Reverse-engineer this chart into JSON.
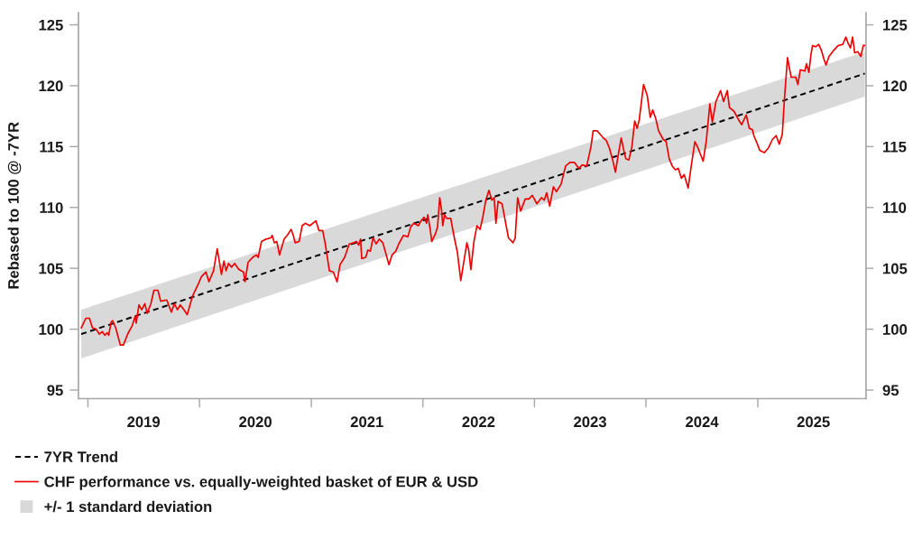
{
  "chart_data": {
    "type": "line",
    "ylabel": "Rebased to 100 @ -7YR",
    "xlim": [
      "2018-12-01",
      "2025-12-21"
    ],
    "xticks": [
      {
        "value": "2019-01-01",
        "label": null
      },
      {
        "value": "2020-01-01",
        "label": null
      },
      {
        "value": "2021-01-01",
        "label": null
      },
      {
        "value": "2022-01-01",
        "label": null
      },
      {
        "value": "2023-01-01",
        "label": null
      },
      {
        "value": "2024-01-01",
        "label": null
      },
      {
        "value": "2025-01-01",
        "label": null
      },
      {
        "value": "2019-07-02",
        "label": "2019"
      },
      {
        "value": "2020-07-02",
        "label": "2020"
      },
      {
        "value": "2021-07-02",
        "label": "2021"
      },
      {
        "value": "2022-07-02",
        "label": "2022"
      },
      {
        "value": "2023-07-02",
        "label": "2023"
      },
      {
        "value": "2024-07-02",
        "label": "2024"
      },
      {
        "value": "2025-07-02",
        "label": "2025"
      }
    ],
    "ylim": [
      94.3,
      126.0
    ],
    "yticks": [
      95,
      100,
      105,
      110,
      115,
      120,
      125
    ],
    "y2lim": [
      94.3,
      126.0
    ],
    "y2ticks": [
      95,
      100,
      105,
      110,
      115,
      120,
      125
    ],
    "legend": "bottom left",
    "series": [
      {
        "name": "7YR Trend",
        "color": "#000000",
        "line_style": "dashed",
        "x": [
          "2018-12-10",
          "2025-12-17"
        ],
        "values": [
          99.6,
          121.0
        ]
      },
      {
        "name": "CHF performance vs. equally-weighted basket of EUR & USD",
        "color": "#ee0000",
        "line_style": "solid",
        "x": [
          "2018-12-10",
          "2018-12-25",
          "2019-01-06",
          "2019-01-16",
          "2019-01-28",
          "2019-02-07",
          "2019-02-17",
          "2019-02-25",
          "2019-03-05",
          "2019-03-10",
          "2019-03-18",
          "2019-03-23",
          "2019-04-02",
          "2019-04-17",
          "2019-04-27",
          "2019-05-11",
          "2019-05-26",
          "2019-06-05",
          "2019-06-08",
          "2019-06-17",
          "2019-06-26",
          "2019-07-06",
          "2019-07-14",
          "2019-07-26",
          "2019-08-05",
          "2019-08-18",
          "2019-08-27",
          "2019-09-16",
          "2019-10-01",
          "2019-10-11",
          "2019-10-21",
          "2019-10-30",
          "2019-11-11",
          "2019-11-22",
          "2019-12-09",
          "2019-12-28",
          "2020-01-07",
          "2020-01-22",
          "2020-02-01",
          "2020-02-16",
          "2020-02-28",
          "2020-03-13",
          "2020-03-21",
          "2020-03-28",
          "2020-04-05",
          "2020-04-15",
          "2020-04-25",
          "2020-05-09",
          "2020-05-24",
          "2020-05-29",
          "2020-06-08",
          "2020-06-23",
          "2020-07-05",
          "2020-07-11",
          "2020-07-22",
          "2020-08-06",
          "2020-08-21",
          "2020-08-26",
          "2020-09-02",
          "2020-09-10",
          "2020-09-19",
          "2020-10-04",
          "2020-10-14",
          "2020-10-27",
          "2020-11-03",
          "2020-11-09",
          "2020-11-22",
          "2020-12-02",
          "2020-12-12",
          "2020-12-27",
          "2021-01-16",
          "2021-01-26",
          "2021-02-07",
          "2021-02-15",
          "2021-03-01",
          "2021-03-14",
          "2021-03-26",
          "2021-04-05",
          "2021-04-20",
          "2021-05-05",
          "2021-05-20",
          "2021-05-29",
          "2021-06-05",
          "2021-06-11",
          "2021-06-15",
          "2021-06-28",
          "2021-07-05",
          "2021-07-13",
          "2021-07-22",
          "2021-08-01",
          "2021-08-11",
          "2021-08-23",
          "2021-09-12",
          "2021-09-22",
          "2021-10-04",
          "2021-10-14",
          "2021-10-29",
          "2021-11-13",
          "2021-11-22",
          "2021-12-02",
          "2021-12-17",
          "2021-12-26",
          "2022-01-05",
          "2022-01-13",
          "2022-01-17",
          "2022-01-25",
          "2022-01-30",
          "2022-02-12",
          "2022-02-18",
          "2022-02-25",
          "2022-03-03",
          "2022-03-07",
          "2022-03-13",
          "2022-03-20",
          "2022-04-02",
          "2022-04-14",
          "2022-04-24",
          "2022-05-05",
          "2022-05-18",
          "2022-05-25",
          "2022-05-31",
          "2022-06-07",
          "2022-06-17",
          "2022-06-27",
          "2022-07-07",
          "2022-07-16",
          "2022-07-26",
          "2022-08-05",
          "2022-08-15",
          "2022-08-22",
          "2022-08-28",
          "2022-09-04",
          "2022-09-17",
          "2022-09-26",
          "2022-10-08",
          "2022-10-23",
          "2022-10-30",
          "2022-11-07",
          "2022-11-17",
          "2022-12-02",
          "2022-12-14",
          "2022-12-25",
          "2023-01-09",
          "2023-01-24",
          "2023-02-02",
          "2023-02-10",
          "2023-02-20",
          "2023-03-04",
          "2023-03-14",
          "2023-03-29",
          "2023-04-13",
          "2023-04-27",
          "2023-05-12",
          "2023-05-27",
          "2023-06-06",
          "2023-06-21",
          "2023-07-05",
          "2023-07-12",
          "2023-07-25",
          "2023-08-11",
          "2023-08-24",
          "2023-09-03",
          "2023-09-13",
          "2023-09-23",
          "2023-10-02",
          "2023-10-12",
          "2023-10-22",
          "2023-10-27",
          "2023-11-06",
          "2023-11-16",
          "2023-11-25",
          "2023-12-03",
          "2023-12-10",
          "2023-12-24",
          "2024-01-05",
          "2024-01-15",
          "2024-01-23",
          "2024-02-02",
          "2024-02-11",
          "2024-02-26",
          "2024-03-07",
          "2024-03-17",
          "2024-03-27",
          "2024-04-06",
          "2024-04-16",
          "2024-04-26",
          "2024-05-05",
          "2024-05-18",
          "2024-05-28",
          "2024-06-09",
          "2024-06-19",
          "2024-07-06",
          "2024-07-16",
          "2024-07-28",
          "2024-08-05",
          "2024-08-17",
          "2024-09-01",
          "2024-09-11",
          "2024-09-23",
          "2024-09-30",
          "2024-10-15",
          "2024-10-30",
          "2024-11-09",
          "2024-11-24",
          "2024-12-04",
          "2024-12-14",
          "2024-12-19",
          "2024-12-29",
          "2025-01-07",
          "2025-01-22",
          "2025-02-05",
          "2025-02-18",
          "2025-03-02",
          "2025-03-12",
          "2025-03-22",
          "2025-03-29",
          "2025-04-08",
          "2025-04-20",
          "2025-05-05",
          "2025-05-12",
          "2025-05-20",
          "2025-06-04",
          "2025-06-09",
          "2025-06-17",
          "2025-06-24",
          "2025-06-29",
          "2025-07-09",
          "2025-07-19",
          "2025-07-28",
          "2025-08-05",
          "2025-08-12",
          "2025-08-22",
          "2025-09-06",
          "2025-09-21",
          "2025-10-06",
          "2025-10-16",
          "2025-10-23",
          "2025-10-31",
          "2025-11-07",
          "2025-11-14",
          "2025-11-24",
          "2025-12-04",
          "2025-12-12",
          "2025-12-17"
        ],
        "values": [
          100.1,
          100.9,
          100.9,
          100.1,
          100.0,
          99.6,
          99.8,
          99.5,
          99.7,
          99.5,
          100.6,
          100.7,
          100.1,
          98.7,
          98.7,
          99.6,
          100.3,
          101.1,
          100.5,
          102.0,
          101.6,
          102.1,
          101.3,
          102.1,
          103.2,
          103.2,
          102.3,
          102.4,
          101.4,
          102.1,
          101.6,
          102.0,
          101.6,
          101.2,
          102.7,
          103.7,
          104.3,
          104.7,
          103.9,
          104.8,
          106.6,
          104.5,
          105.6,
          104.8,
          105.4,
          105.1,
          105.4,
          104.9,
          104.7,
          103.9,
          105.5,
          105.9,
          106.1,
          105.9,
          107.2,
          107.4,
          107.5,
          107.7,
          107.1,
          107.2,
          106.1,
          107.4,
          107.7,
          108.2,
          107.7,
          107.1,
          107.2,
          108.5,
          108.7,
          108.5,
          108.9,
          108.1,
          108.1,
          107.1,
          104.8,
          104.7,
          103.9,
          105.3,
          105.9,
          107.0,
          107.1,
          107.2,
          106.9,
          107.4,
          105.8,
          105.9,
          106.5,
          106.4,
          107.5,
          107.0,
          107.4,
          107.1,
          105.3,
          106.1,
          106.4,
          107.0,
          107.7,
          107.6,
          108.4,
          108.7,
          108.5,
          108.9,
          109.2,
          108.7,
          109.4,
          108.2,
          107.2,
          107.9,
          108.4,
          110.8,
          109.8,
          108.5,
          109.4,
          109.1,
          109.1,
          107.5,
          106.3,
          104.0,
          106.0,
          107.1,
          106.5,
          104.9,
          107.2,
          108.5,
          108.2,
          109.2,
          110.6,
          111.4,
          110.6,
          110.8,
          108.7,
          110.5,
          110.3,
          109.1,
          107.5,
          107.1,
          107.5,
          110.8,
          109.7,
          110.7,
          110.7,
          111.0,
          110.3,
          110.8,
          110.6,
          111.2,
          110.1,
          111.7,
          111.3,
          111.9,
          113.4,
          113.7,
          113.7,
          113.2,
          113.5,
          113.4,
          115.0,
          116.3,
          116.3,
          115.8,
          115.5,
          114.9,
          114.0,
          112.9,
          114.3,
          115.7,
          114.5,
          114.0,
          113.9,
          115.0,
          117.1,
          116.5,
          117.2,
          120.1,
          119.2,
          117.4,
          118.0,
          117.3,
          116.3,
          115.6,
          115.4,
          114.0,
          113.4,
          113.1,
          113.2,
          112.4,
          112.7,
          111.6,
          113.4,
          115.4,
          114.9,
          113.8,
          115.4,
          118.5,
          117.0,
          118.7,
          119.6,
          118.7,
          119.6,
          118.2,
          117.9,
          117.2,
          116.8,
          117.6,
          116.5,
          116.4,
          115.9,
          115.3,
          114.7,
          114.5,
          114.9,
          115.6,
          115.9,
          115.2,
          116.0,
          118.9,
          122.3,
          120.7,
          120.7,
          120.1,
          121.3,
          121.2,
          121.8,
          121.1,
          122.6,
          123.3,
          123.2,
          123.4,
          122.9,
          122.2,
          121.7,
          122.4,
          122.9,
          123.3,
          123.4,
          124.0,
          123.5,
          123.1,
          124.0,
          122.7,
          122.8,
          122.4,
          123.3,
          123.3
        ]
      },
      {
        "name": "+/- 1 standard deviation",
        "type": "area",
        "color": "#d9d9d9",
        "x": [
          "2018-12-10",
          "2025-12-17"
        ],
        "values": [
          null,
          null
        ],
        "lower": [
          97.6,
          119.1
        ],
        "upper": [
          101.6,
          122.8
        ]
      }
    ]
  }
}
